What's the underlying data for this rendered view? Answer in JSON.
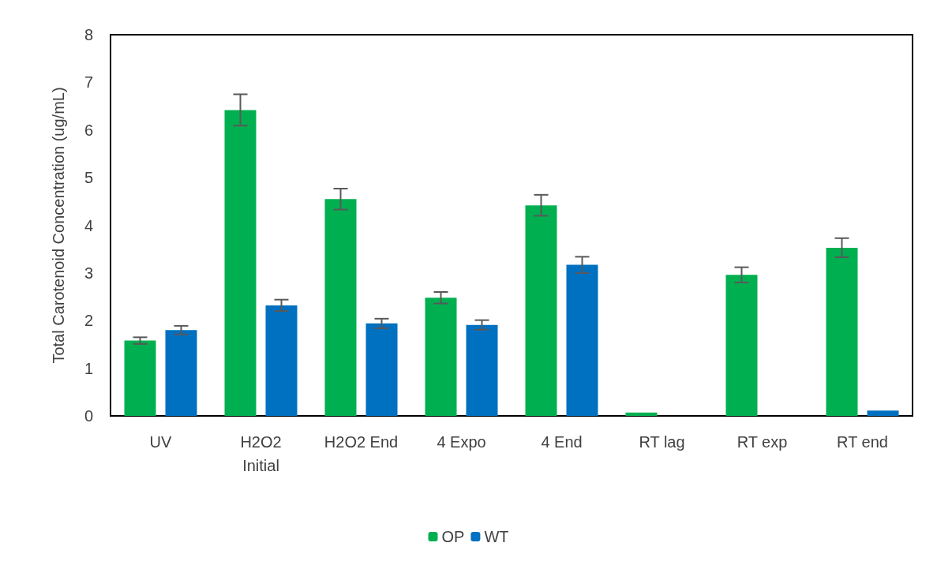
{
  "chart_data": {
    "type": "bar",
    "ylabel": "Total Carotenoid Concentration (ug/mL)",
    "categories": [
      "UV",
      "H2O2\nInitial",
      "H2O2 End",
      "4 Expo",
      "4 End",
      "RT lag",
      "RT exp",
      "RT end"
    ],
    "series": [
      {
        "name": "OP",
        "color": "#00b050",
        "values": [
          1.58,
          6.42,
          4.55,
          2.48,
          4.42,
          0.07,
          2.96,
          3.53
        ],
        "errors": [
          0.07,
          0.33,
          0.22,
          0.12,
          0.22,
          null,
          0.16,
          0.2
        ]
      },
      {
        "name": "WT",
        "color": "#0070c0",
        "values": [
          1.8,
          2.32,
          1.94,
          1.91,
          3.17,
          0,
          0,
          0.11
        ],
        "errors": [
          0.09,
          0.12,
          0.1,
          0.1,
          0.17,
          null,
          null,
          null
        ]
      }
    ],
    "ylim": [
      0,
      8
    ],
    "yticks": [
      0,
      1,
      2,
      3,
      4,
      5,
      6,
      7,
      8
    ],
    "grid": false,
    "legend": "bottom"
  }
}
